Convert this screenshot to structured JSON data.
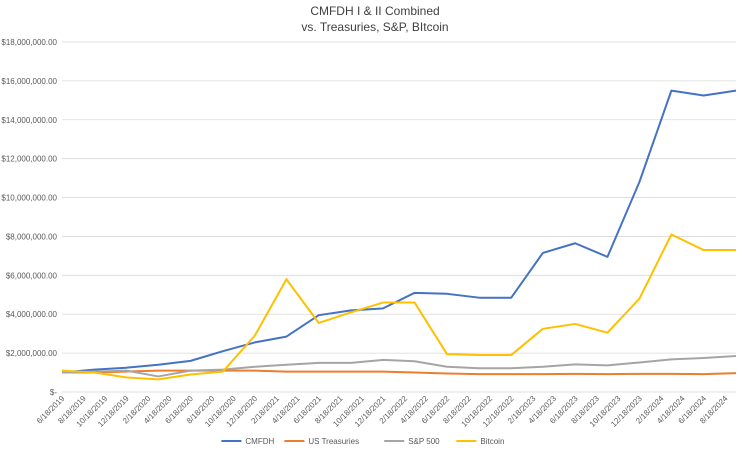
{
  "chart_data": {
    "type": "line",
    "title": "CMFDH I & II Combined",
    "subtitle": "vs. Treasuries, S&P, BItcoin",
    "x": [
      "6/18/2019",
      "9/18/2019",
      "12/18/2019",
      "3/18/2020",
      "6/18/2020",
      "9/18/2020",
      "12/18/2020",
      "3/18/2021",
      "6/18/2021",
      "9/18/2021",
      "12/18/2021",
      "3/18/2022",
      "6/18/2022",
      "9/18/2022",
      "12/18/2022",
      "3/18/2023",
      "6/18/2023",
      "9/18/2023",
      "12/18/2023",
      "3/18/2024",
      "6/18/2024",
      "9/18/2024"
    ],
    "xlim": [
      "6/18/2019",
      "9/18/2024"
    ],
    "xticks": [
      "6/18/2019",
      "8/18/2019",
      "10/18/2019",
      "12/18/2019",
      "2/18/2020",
      "4/18/2020",
      "6/18/2020",
      "8/18/2020",
      "10/18/2020",
      "12/18/2020",
      "2/18/2021",
      "4/18/2021",
      "6/18/2021",
      "8/18/2021",
      "10/18/2021",
      "12/18/2021",
      "2/18/2022",
      "4/18/2022",
      "6/18/2022",
      "8/18/2022",
      "10/18/2022",
      "12/18/2022",
      "2/18/2023",
      "4/18/2023",
      "6/18/2023",
      "8/18/2023",
      "10/18/2023",
      "12/18/2023",
      "2/18/2024",
      "4/18/2024",
      "6/18/2024",
      "8/18/2024"
    ],
    "ylim": [
      0,
      18000000
    ],
    "yticks": [
      {
        "value": 0,
        "label": "$-"
      },
      {
        "value": 2000000,
        "label": "$2,000,000.00"
      },
      {
        "value": 4000000,
        "label": "$4,000,000.00"
      },
      {
        "value": 6000000,
        "label": "$6,000,000.00"
      },
      {
        "value": 8000000,
        "label": "$8,000,000.00"
      },
      {
        "value": 10000000,
        "label": "$10,000,000.00"
      },
      {
        "value": 12000000,
        "label": "$12,000,000.00"
      },
      {
        "value": 14000000,
        "label": "$14,000,000.00"
      },
      {
        "value": 16000000,
        "label": "$16,000,000.00"
      },
      {
        "value": 18000000,
        "label": "$18,000,000.00"
      }
    ],
    "grid": true,
    "legend": "bottom",
    "series": [
      {
        "name": "CMFDH",
        "color": "#4472c4",
        "values": [
          1000000,
          1150000,
          1250000,
          1400000,
          1600000,
          2100000,
          2550000,
          2850000,
          3950000,
          4200000,
          4300000,
          5100000,
          5050000,
          4850000,
          4850000,
          7150000,
          7650000,
          6950000,
          10800000,
          15500000,
          15250000,
          15500000
        ]
      },
      {
        "name": "US Treasuries",
        "color": "#ed7d31",
        "values": [
          1000000,
          1000000,
          1050000,
          1100000,
          1100000,
          1100000,
          1100000,
          1050000,
          1050000,
          1050000,
          1050000,
          1000000,
          950000,
          920000,
          920000,
          920000,
          930000,
          920000,
          930000,
          930000,
          920000,
          970000
        ]
      },
      {
        "name": "S&P 500",
        "color": "#a5a5a5",
        "values": [
          1000000,
          1050000,
          1100000,
          800000,
          1100000,
          1150000,
          1300000,
          1400000,
          1500000,
          1500000,
          1650000,
          1580000,
          1300000,
          1220000,
          1220000,
          1300000,
          1420000,
          1370000,
          1520000,
          1680000,
          1750000,
          1850000
        ]
      },
      {
        "name": "Bitcoin",
        "color": "#ffc000",
        "values": [
          1100000,
          1000000,
          750000,
          650000,
          900000,
          1050000,
          2900000,
          5800000,
          3550000,
          4100000,
          4600000,
          4600000,
          1950000,
          1900000,
          1900000,
          3250000,
          3500000,
          3050000,
          4800000,
          8100000,
          7300000,
          7300000
        ]
      }
    ]
  }
}
